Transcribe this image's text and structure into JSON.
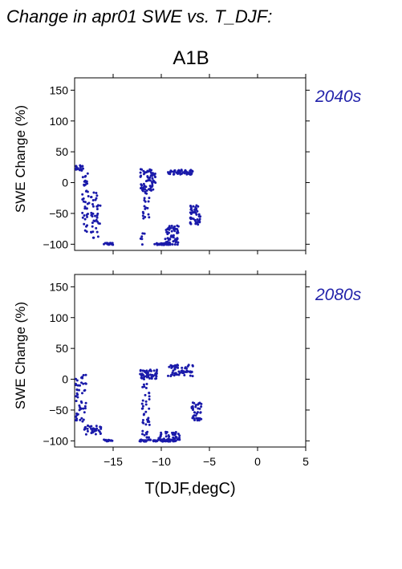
{
  "figure": {
    "suptitle": "Change in apr01 SWE vs. T_DJF:",
    "scenario": "A1B",
    "xlabel": "T(DJF,degC)",
    "ylabel": "SWE Change (%)",
    "point_color": "#1a1aaa",
    "label_color": "#2222aa"
  },
  "chart_data": [
    {
      "type": "scatter",
      "panel_label": "2040s",
      "xlabel": "T(DJF,degC)",
      "ylabel": "SWE Change (%)",
      "xlim": [
        -19,
        5
      ],
      "ylim": [
        -110,
        170
      ],
      "xticks": [
        -15,
        -10,
        -5,
        0,
        5
      ],
      "yticks": [
        -100,
        -50,
        0,
        50,
        100,
        150
      ],
      "grid": false,
      "clusters": [
        {
          "x": [
            -19.0,
            -18.1
          ],
          "y": [
            18,
            28
          ],
          "n": 20
        },
        {
          "x": [
            -18.2,
            -17.5
          ],
          "y": [
            -80,
            15
          ],
          "n": 40
        },
        {
          "x": [
            -17.4,
            -16.3
          ],
          "y": [
            -90,
            -15
          ],
          "n": 40
        },
        {
          "x": [
            -16.0,
            -15.0
          ],
          "y": [
            -101,
            -98
          ],
          "n": 18
        },
        {
          "x": [
            -12.2,
            -10.6
          ],
          "y": [
            -15,
            22
          ],
          "n": 70
        },
        {
          "x": [
            -11.9,
            -11.2
          ],
          "y": [
            -60,
            -15
          ],
          "n": 18
        },
        {
          "x": [
            -12.5,
            -11.5
          ],
          "y": [
            -101,
            -80
          ],
          "n": 6
        },
        {
          "x": [
            -10.7,
            -9.0
          ],
          "y": [
            -101,
            -98
          ],
          "n": 40
        },
        {
          "x": [
            -9.6,
            -8.2
          ],
          "y": [
            -101,
            -70
          ],
          "n": 55
        },
        {
          "x": [
            -9.3,
            -6.7
          ],
          "y": [
            13,
            21
          ],
          "n": 55
        },
        {
          "x": [
            -7.0,
            -5.9
          ],
          "y": [
            -68,
            -35
          ],
          "n": 45
        }
      ]
    },
    {
      "type": "scatter",
      "panel_label": "2080s",
      "xlabel": "T(DJF,degC)",
      "ylabel": "SWE Change (%)",
      "xlim": [
        -19,
        5
      ],
      "ylim": [
        -110,
        170
      ],
      "xticks": [
        -15,
        -10,
        -5,
        0,
        5
      ],
      "yticks": [
        -100,
        -50,
        0,
        50,
        100,
        150
      ],
      "grid": false,
      "clusters": [
        {
          "x": [
            -19.0,
            -17.8
          ],
          "y": [
            -70,
            10
          ],
          "n": 50
        },
        {
          "x": [
            -18.0,
            -16.2
          ],
          "y": [
            -90,
            -75
          ],
          "n": 35
        },
        {
          "x": [
            -16.2,
            -15.0
          ],
          "y": [
            -101,
            -98
          ],
          "n": 14
        },
        {
          "x": [
            -12.2,
            -10.4
          ],
          "y": [
            0,
            16
          ],
          "n": 55
        },
        {
          "x": [
            -12.0,
            -11.2
          ],
          "y": [
            -95,
            -5
          ],
          "n": 40
        },
        {
          "x": [
            -12.3,
            -8.5
          ],
          "y": [
            -101,
            -98
          ],
          "n": 70
        },
        {
          "x": [
            -10.3,
            -8.1
          ],
          "y": [
            -101,
            -84
          ],
          "n": 50
        },
        {
          "x": [
            -9.3,
            -6.7
          ],
          "y": [
            5,
            25
          ],
          "n": 60
        },
        {
          "x": [
            -6.9,
            -5.8
          ],
          "y": [
            -67,
            -38
          ],
          "n": 40
        }
      ]
    }
  ]
}
